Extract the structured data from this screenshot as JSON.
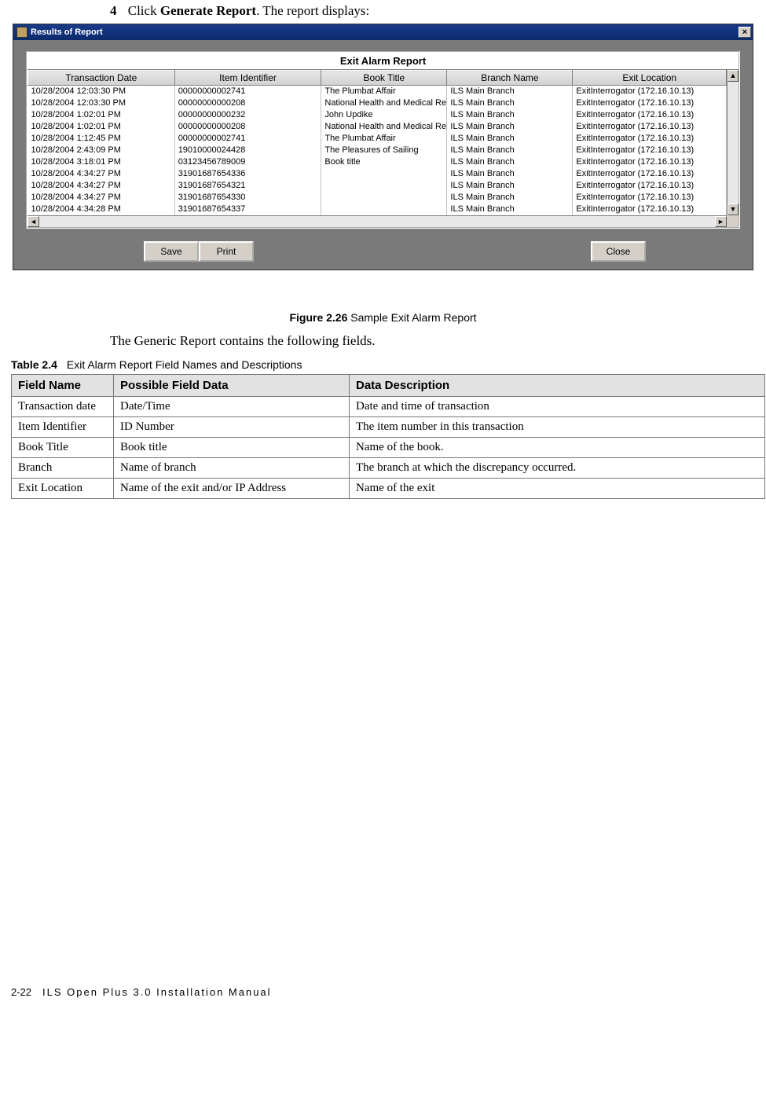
{
  "step": {
    "number": "4",
    "prefix": "Click ",
    "bold": "Generate Report",
    "suffix": ". The report displays:"
  },
  "window": {
    "title": "Results of Report",
    "close": "×",
    "panel_title": "Exit Alarm Report",
    "columns": [
      "Transaction Date",
      "Item Identifier",
      "Book Title",
      "Branch Name",
      "Exit Location"
    ],
    "col_widths": [
      "21%",
      "21%",
      "18%",
      "18%",
      "22%"
    ],
    "rows": [
      [
        "10/28/2004 12:03:30 PM",
        "00000000002741",
        "The Plumbat Affair",
        "ILS Main Branch",
        "ExitInterrogator (172.16.10.13)"
      ],
      [
        "10/28/2004 12:03:30 PM",
        "00000000000208",
        "National Health and Medical Research",
        "ILS Main Branch",
        "ExitInterrogator (172.16.10.13)"
      ],
      [
        "10/28/2004 1:02:01 PM",
        "00000000000232",
        "John Updike",
        "ILS Main Branch",
        "ExitInterrogator (172.16.10.13)"
      ],
      [
        "10/28/2004 1:02:01 PM",
        "00000000000208",
        "National Health and Medical Research",
        "ILS Main Branch",
        "ExitInterrogator (172.16.10.13)"
      ],
      [
        "10/28/2004 1:12:45 PM",
        "00000000002741",
        "The Plumbat Affair",
        "ILS Main Branch",
        "ExitInterrogator (172.16.10.13)"
      ],
      [
        "10/28/2004 2:43:09 PM",
        "19010000024428",
        "The Pleasures of Sailing",
        "ILS Main Branch",
        "ExitInterrogator (172.16.10.13)"
      ],
      [
        "10/28/2004 3:18:01 PM",
        "03123456789009",
        "Book title",
        "ILS Main Branch",
        "ExitInterrogator (172.16.10.13)"
      ],
      [
        "10/28/2004 4:34:27 PM",
        "31901687654336",
        "",
        "ILS Main Branch",
        "ExitInterrogator (172.16.10.13)"
      ],
      [
        "10/28/2004 4:34:27 PM",
        "31901687654321",
        "",
        "ILS Main Branch",
        "ExitInterrogator (172.16.10.13)"
      ],
      [
        "10/28/2004 4:34:27 PM",
        "31901687654330",
        "",
        "ILS Main Branch",
        "ExitInterrogator (172.16.10.13)"
      ],
      [
        "10/28/2004 4:34:28 PM",
        "31901687654337",
        "",
        "ILS Main Branch",
        "ExitInterrogator (172.16.10.13)"
      ]
    ],
    "buttons": {
      "save": "Save",
      "print": "Print",
      "close": "Close"
    },
    "scroll": {
      "up": "▲",
      "down": "▼",
      "left": "◄",
      "right": "►"
    }
  },
  "figure": {
    "label": "Figure 2.26",
    "text": " Sample Exit Alarm Report"
  },
  "body_text": "The Generic Report contains the following fields.",
  "table_caption": {
    "label": "Table 2.4",
    "text": "Exit Alarm Report Field Names and Descriptions"
  },
  "doc_table": {
    "headers": [
      "Field Name",
      "Possible Field Data",
      "Data Description"
    ],
    "rows": [
      [
        "Transaction date",
        "Date/Time",
        "Date and time of transaction"
      ],
      [
        "Item Identifier",
        "ID Number",
        "The item number in this transaction"
      ],
      [
        "Book Title",
        "Book title",
        "Name of the book."
      ],
      [
        "Branch",
        "Name of branch",
        "The branch at which the discrepancy occurred."
      ],
      [
        "Exit Location",
        "Name of the exit and/or IP Address",
        "Name of the exit"
      ]
    ]
  },
  "footer": {
    "page": "2-22",
    "text": "ILS Open Plus 3.0 Installation Manual"
  }
}
